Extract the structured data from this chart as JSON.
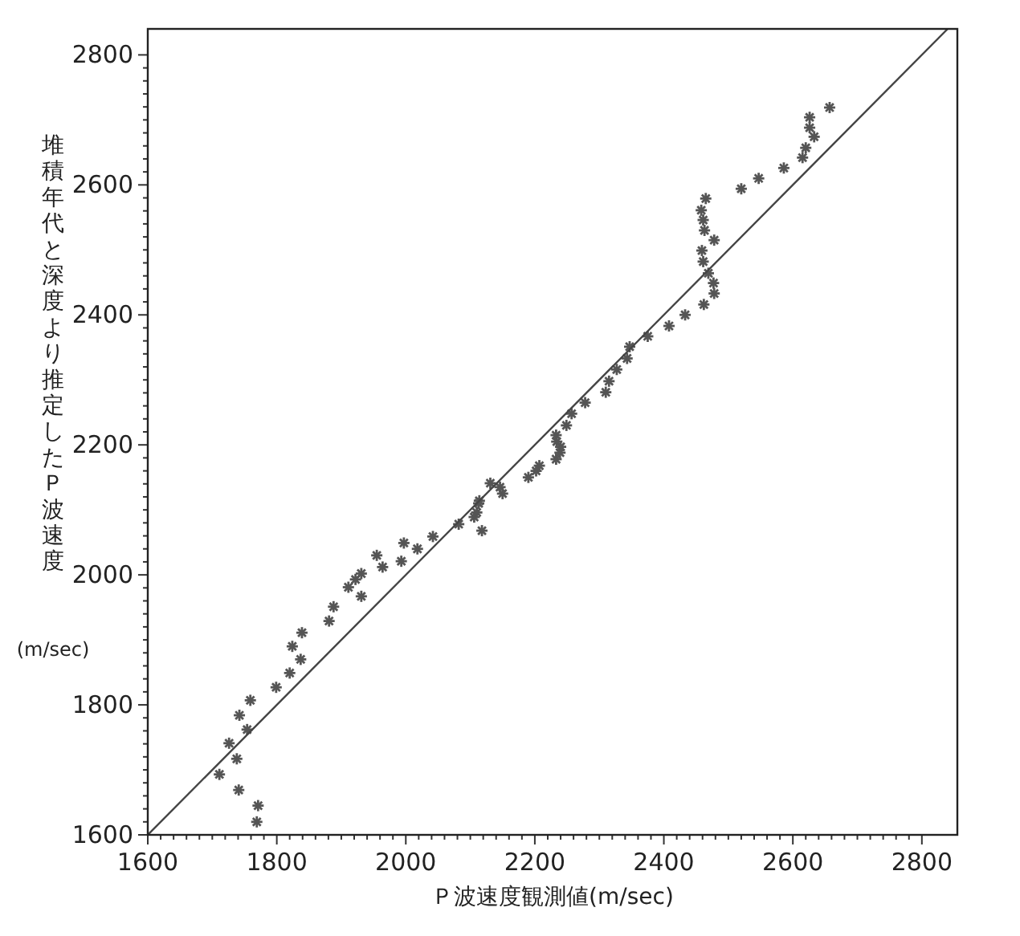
{
  "chart_data": {
    "type": "scatter",
    "xlabel": "Ｐ波速度観測値(m/sec)",
    "ylabel": "堆積年代と深度より推定したＰ波速度(m/sec)",
    "xlim": [
      1600,
      2855
    ],
    "ylim": [
      1600,
      2840
    ],
    "xticks": [
      1600,
      {
        "value": 1620,
        "label": null
      },
      {
        "value": 1640,
        "label": null
      },
      {
        "value": 1660,
        "label": null
      },
      {
        "value": 1680,
        "label": null
      },
      {
        "value": 1700,
        "label": null
      },
      {
        "value": 1720,
        "label": null
      },
      {
        "value": 1740,
        "label": null
      },
      {
        "value": 1760,
        "label": null
      },
      {
        "value": 1780,
        "label": null
      },
      1800,
      {
        "value": 1820,
        "label": null
      },
      {
        "value": 1840,
        "label": null
      },
      {
        "value": 1860,
        "label": null
      },
      {
        "value": 1880,
        "label": null
      },
      {
        "value": 1900,
        "label": null
      },
      {
        "value": 1920,
        "label": null
      },
      {
        "value": 1940,
        "label": null
      },
      {
        "value": 1960,
        "label": null
      },
      {
        "value": 1980,
        "label": null
      },
      2000,
      {
        "value": 2020,
        "label": null
      },
      {
        "value": 2040,
        "label": null
      },
      {
        "value": 2060,
        "label": null
      },
      {
        "value": 2080,
        "label": null
      },
      {
        "value": 2100,
        "label": null
      },
      {
        "value": 2120,
        "label": null
      },
      {
        "value": 2140,
        "label": null
      },
      {
        "value": 2160,
        "label": null
      },
      {
        "value": 2180,
        "label": null
      },
      2200,
      {
        "value": 2220,
        "label": null
      },
      {
        "value": 2240,
        "label": null
      },
      {
        "value": 2260,
        "label": null
      },
      {
        "value": 2280,
        "label": null
      },
      {
        "value": 2300,
        "label": null
      },
      {
        "value": 2320,
        "label": null
      },
      {
        "value": 2340,
        "label": null
      },
      {
        "value": 2360,
        "label": null
      },
      {
        "value": 2380,
        "label": null
      },
      2400,
      {
        "value": 2420,
        "label": null
      },
      {
        "value": 2440,
        "label": null
      },
      {
        "value": 2460,
        "label": null
      },
      {
        "value": 2480,
        "label": null
      },
      {
        "value": 2500,
        "label": null
      },
      {
        "value": 2520,
        "label": null
      },
      {
        "value": 2540,
        "label": null
      },
      {
        "value": 2560,
        "label": null
      },
      {
        "value": 2580,
        "label": null
      },
      2600,
      {
        "value": 2620,
        "label": null
      },
      {
        "value": 2640,
        "label": null
      },
      {
        "value": 2660,
        "label": null
      },
      {
        "value": 2680,
        "label": null
      },
      {
        "value": 2700,
        "label": null
      },
      {
        "value": 2720,
        "label": null
      },
      {
        "value": 2740,
        "label": null
      },
      {
        "value": 2760,
        "label": null
      },
      {
        "value": 2780,
        "label": null
      },
      2800
    ],
    "yticks": [
      1600,
      {
        "value": 1620,
        "label": null
      },
      {
        "value": 1640,
        "label": null
      },
      {
        "value": 1660,
        "label": null
      },
      {
        "value": 1680,
        "label": null
      },
      {
        "value": 1700,
        "label": null
      },
      {
        "value": 1720,
        "label": null
      },
      {
        "value": 1740,
        "label": null
      },
      {
        "value": 1760,
        "label": null
      },
      {
        "value": 1780,
        "label": null
      },
      1800,
      {
        "value": 1820,
        "label": null
      },
      {
        "value": 1840,
        "label": null
      },
      {
        "value": 1860,
        "label": null
      },
      {
        "value": 1880,
        "label": null
      },
      {
        "value": 1900,
        "label": null
      },
      {
        "value": 1920,
        "label": null
      },
      {
        "value": 1940,
        "label": null
      },
      {
        "value": 1960,
        "label": null
      },
      {
        "value": 1980,
        "label": null
      },
      2000,
      {
        "value": 2020,
        "label": null
      },
      {
        "value": 2040,
        "label": null
      },
      {
        "value": 2060,
        "label": null
      },
      {
        "value": 2080,
        "label": null
      },
      {
        "value": 2100,
        "label": null
      },
      {
        "value": 2120,
        "label": null
      },
      {
        "value": 2140,
        "label": null
      },
      {
        "value": 2160,
        "label": null
      },
      {
        "value": 2180,
        "label": null
      },
      2200,
      {
        "value": 2220,
        "label": null
      },
      {
        "value": 2240,
        "label": null
      },
      {
        "value": 2260,
        "label": null
      },
      {
        "value": 2280,
        "label": null
      },
      {
        "value": 2300,
        "label": null
      },
      {
        "value": 2320,
        "label": null
      },
      {
        "value": 2340,
        "label": null
      },
      {
        "value": 2360,
        "label": null
      },
      {
        "value": 2380,
        "label": null
      },
      2400,
      {
        "value": 2420,
        "label": null
      },
      {
        "value": 2440,
        "label": null
      },
      {
        "value": 2460,
        "label": null
      },
      {
        "value": 2480,
        "label": null
      },
      {
        "value": 2500,
        "label": null
      },
      {
        "value": 2520,
        "label": null
      },
      {
        "value": 2540,
        "label": null
      },
      {
        "value": 2560,
        "label": null
      },
      {
        "value": 2580,
        "label": null
      },
      2600,
      {
        "value": 2620,
        "label": null
      },
      {
        "value": 2640,
        "label": null
      },
      {
        "value": 2660,
        "label": null
      },
      {
        "value": 2680,
        "label": null
      },
      {
        "value": 2700,
        "label": null
      },
      {
        "value": 2720,
        "label": null
      },
      {
        "value": 2740,
        "label": null
      },
      {
        "value": 2760,
        "label": null
      },
      {
        "value": 2780,
        "label": null
      },
      2800
    ],
    "grid": false,
    "series": [
      {
        "marker": "cross",
        "color": "#555555",
        "x": [
          1711,
          1741,
          1738,
          1726,
          1754,
          1742,
          1759,
          1771,
          1769,
          1799,
          1820,
          1837,
          1824,
          1839,
          1881,
          1888,
          1911,
          1922,
          1931,
          1931,
          1955,
          1964,
          1997,
          1993,
          2018,
          2042,
          2082,
          2106,
          2110,
          2113,
          2114,
          2118,
          2131,
          2146,
          2150,
          2190,
          2202,
          2207,
          2233,
          2239,
          2240,
          2234,
          2233,
          2249,
          2257,
          2278,
          2310,
          2315,
          2327,
          2343,
          2347,
          2375,
          2408,
          2433,
          2462,
          2478,
          2477,
          2469,
          2461,
          2459,
          2478,
          2463,
          2461,
          2458,
          2465,
          2520,
          2547,
          2586,
          2615,
          2620,
          2633,
          2626,
          2626,
          2657
        ],
        "values": [
          1693,
          1669,
          1717,
          1741,
          1762,
          1784,
          1807,
          1645,
          1620,
          1827,
          1849,
          1870,
          1890,
          1911,
          1929,
          1951,
          1981,
          1993,
          2002,
          1967,
          2030,
          2012,
          2049,
          2021,
          2040,
          2059,
          2078,
          2089,
          2096,
          2110,
          2114,
          2068,
          2141,
          2135,
          2125,
          2150,
          2160,
          2168,
          2178,
          2188,
          2197,
          2205,
          2215,
          2230,
          2248,
          2265,
          2281,
          2298,
          2316,
          2333,
          2351,
          2367,
          2383,
          2400,
          2416,
          2433,
          2449,
          2464,
          2482,
          2499,
          2515,
          2530,
          2546,
          2561,
          2579,
          2594,
          2610,
          2626,
          2642,
          2657,
          2674,
          2688,
          2704,
          2719
        ]
      },
      {
        "type": "line",
        "marker": "none",
        "line_style": "solid",
        "color": "#444444",
        "x": [
          1600,
          2840
        ],
        "values": [
          1600,
          2840
        ]
      }
    ]
  }
}
